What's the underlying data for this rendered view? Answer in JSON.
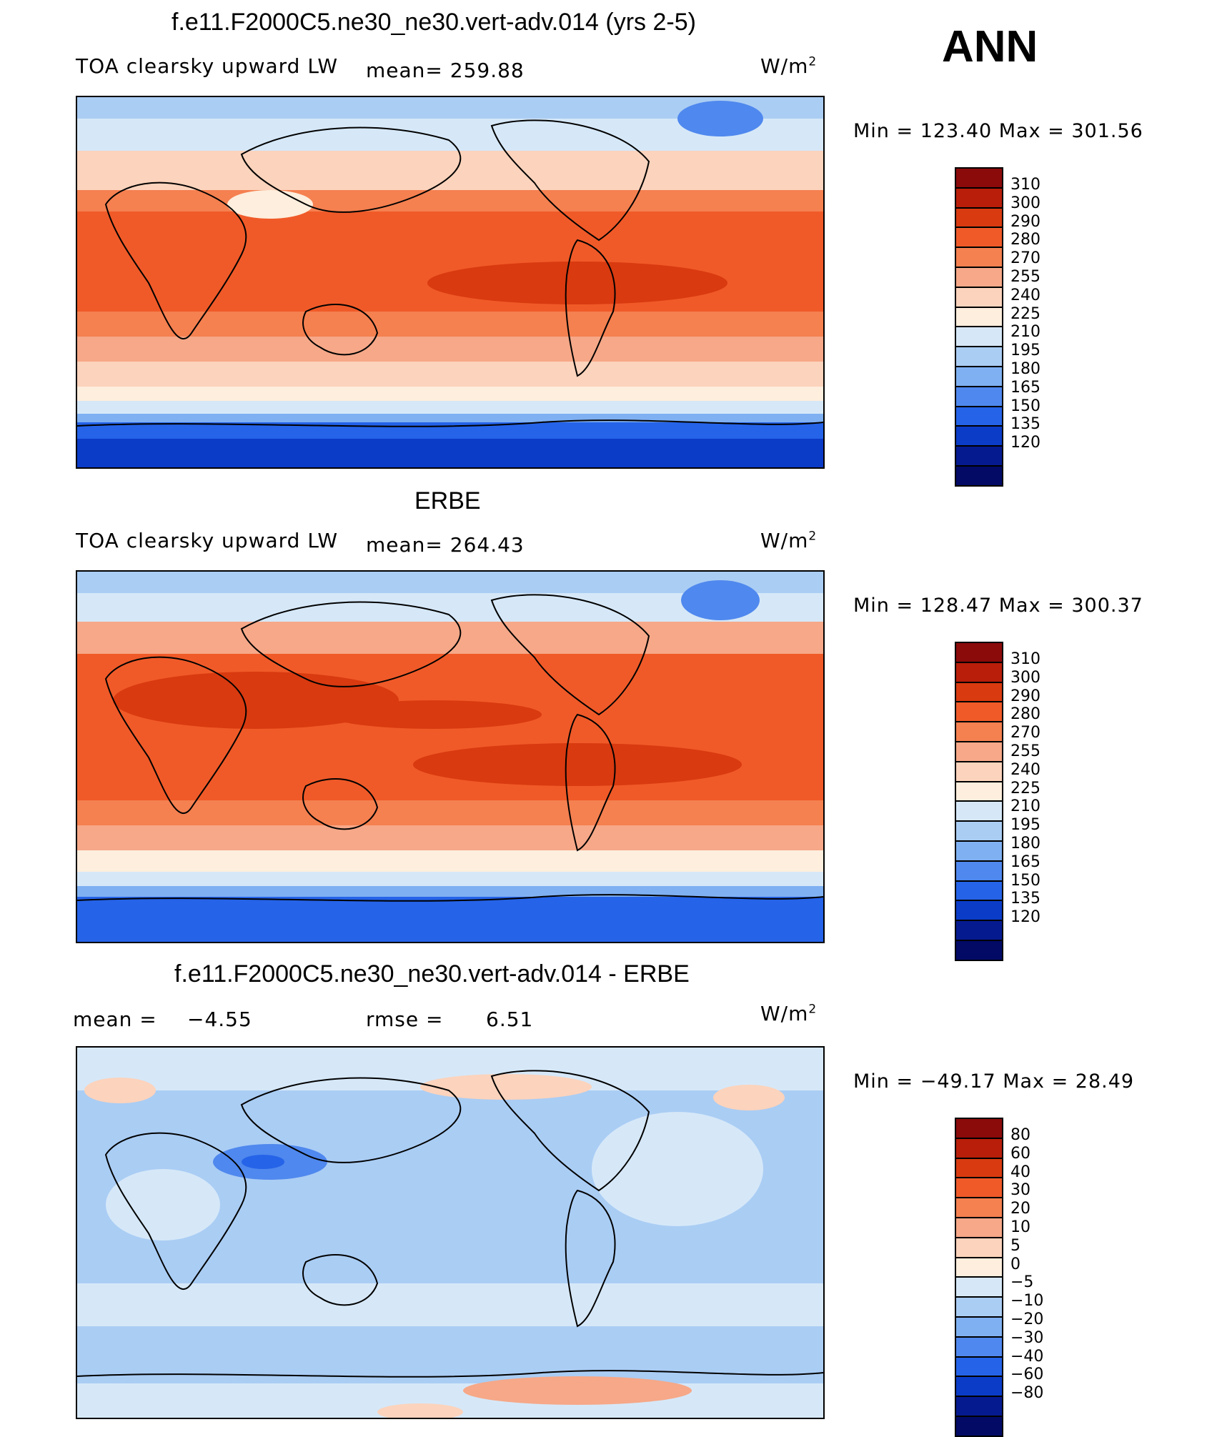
{
  "season": "ANN",
  "panels": [
    {
      "title": "f.e11.F2000C5.ne30_ne30.vert-adv.014 (yrs 2-5)",
      "variable": "TOA clearsky upward LW",
      "mean_text": "mean=  259.88",
      "units_base": "W/m",
      "units_exp": "2",
      "stats": "Min  =  123.40  Max  =  301.56",
      "colorbar": [
        "310",
        "300",
        "290",
        "280",
        "270",
        "255",
        "240",
        "225",
        "210",
        "195",
        "180",
        "165",
        "150",
        "135",
        "120"
      ]
    },
    {
      "title": "ERBE",
      "variable": "TOA clearsky upward LW",
      "mean_text": "mean=  264.43",
      "units_base": "W/m",
      "units_exp": "2",
      "stats": "Min  =  128.47  Max  =  300.37",
      "colorbar": [
        "310",
        "300",
        "290",
        "280",
        "270",
        "255",
        "240",
        "225",
        "210",
        "195",
        "180",
        "165",
        "150",
        "135",
        "120"
      ]
    },
    {
      "title": "f.e11.F2000C5.ne30_ne30.vert-adv.014 - ERBE",
      "mean_label": "mean  =",
      "mean_value": "−4.55",
      "rmse_label": "rmse  =",
      "rmse_value": "6.51",
      "units_base": "W/m",
      "units_exp": "2",
      "stats": "Min  =  −49.17  Max  =    28.49",
      "colorbar": [
        "80",
        "60",
        "40",
        "30",
        "20",
        "10",
        "5",
        "0",
        "−5",
        "−10",
        "−20",
        "−30",
        "−40",
        "−60",
        "−80"
      ]
    }
  ],
  "colors": {
    "abs_scale": [
      "#8b0a0a",
      "#b81e0a",
      "#d93a10",
      "#f05a28",
      "#f58050",
      "#f6a888",
      "#fcd3bc",
      "#fdeedd",
      "#d6e8f8",
      "#aacdf4",
      "#7fb0f2",
      "#4f88ee",
      "#2563e8",
      "#0b3cc8",
      "#061a90",
      "#020a66"
    ],
    "diff_scale": [
      "#8b0a0a",
      "#b81e0a",
      "#d93a10",
      "#f05a28",
      "#f58050",
      "#f6a888",
      "#fcd3bc",
      "#fdeedd",
      "#d6e8f8",
      "#aacdf4",
      "#7fb0f2",
      "#4f88ee",
      "#2563e8",
      "#0b3cc8",
      "#061a90",
      "#020a66"
    ]
  }
}
